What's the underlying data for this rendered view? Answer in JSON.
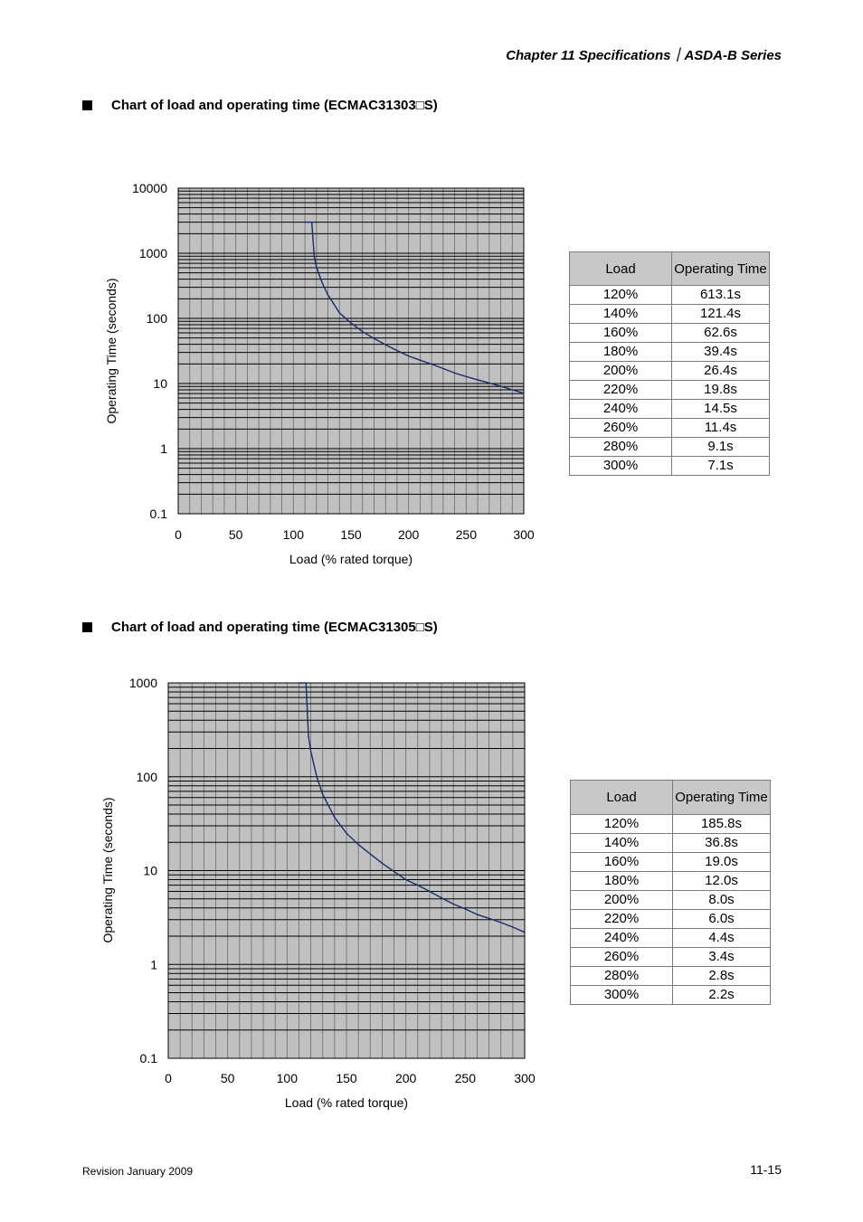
{
  "header": {
    "title": "Chapter 11  Specifications｜ASDA-B Series"
  },
  "sections": [
    {
      "heading": "Chart of load and operating time (ECMAC31303□S)",
      "table": {
        "headers": [
          "Load",
          "Operating Time"
        ],
        "rows": [
          [
            "120%",
            "613.1s"
          ],
          [
            "140%",
            "121.4s"
          ],
          [
            "160%",
            "62.6s"
          ],
          [
            "180%",
            "39.4s"
          ],
          [
            "200%",
            "26.4s"
          ],
          [
            "220%",
            "19.8s"
          ],
          [
            "240%",
            "14.5s"
          ],
          [
            "260%",
            "11.4s"
          ],
          [
            "280%",
            "9.1s"
          ],
          [
            "300%",
            "7.1s"
          ]
        ]
      }
    },
    {
      "heading": "Chart of load and operating time (ECMAC31305□S)",
      "table": {
        "headers": [
          "Load",
          "Operating Time"
        ],
        "rows": [
          [
            "120%",
            "185.8s"
          ],
          [
            "140%",
            "36.8s"
          ],
          [
            "160%",
            "19.0s"
          ],
          [
            "180%",
            "12.0s"
          ],
          [
            "200%",
            "8.0s"
          ],
          [
            "220%",
            "6.0s"
          ],
          [
            "240%",
            "4.4s"
          ],
          [
            "260%",
            "3.4s"
          ],
          [
            "280%",
            "2.8s"
          ],
          [
            "300%",
            "2.2s"
          ]
        ]
      }
    }
  ],
  "chart_data": [
    {
      "type": "line",
      "xlabel": "Load (% rated torque)",
      "ylabel": "Operating Time (seconds)",
      "xlim": [
        0,
        300
      ],
      "ylim": [
        0.1,
        10000
      ],
      "yscale": "log",
      "xticks": [
        "0",
        "50",
        "100",
        "150",
        "200",
        "250",
        "300"
      ],
      "yticks": [
        "0.1",
        "1",
        "10",
        "100",
        "1000",
        "10000"
      ],
      "grid": true,
      "line_color": "#1a2a6c",
      "x": [
        110,
        116,
        118,
        120,
        125,
        130,
        140,
        150,
        160,
        170,
        180,
        190,
        200,
        210,
        220,
        230,
        240,
        250,
        260,
        270,
        280,
        290,
        300
      ],
      "y": [
        3000,
        3000,
        900,
        613.1,
        350,
        230,
        121.4,
        85,
        62.6,
        49,
        39.4,
        32,
        26.4,
        22.8,
        19.8,
        17,
        14.5,
        12.8,
        11.4,
        10.2,
        9.1,
        8,
        7.1
      ]
    },
    {
      "type": "line",
      "xlabel": "Load (% rated torque)",
      "ylabel": "Operating Time (seconds)",
      "xlim": [
        0,
        300
      ],
      "ylim": [
        0.1,
        1000
      ],
      "yscale": "log",
      "xticks": [
        "0",
        "50",
        "100",
        "150",
        "200",
        "250",
        "300"
      ],
      "yticks": [
        "0.1",
        "1",
        "10",
        "100",
        "1000"
      ],
      "grid": true,
      "line_color": "#1a2a6c",
      "x": [
        110,
        116,
        117,
        118,
        120,
        125,
        130,
        140,
        150,
        160,
        170,
        180,
        190,
        200,
        210,
        220,
        230,
        240,
        250,
        260,
        270,
        280,
        290,
        300
      ],
      "y": [
        1000,
        1000,
        500,
        270,
        185.8,
        100,
        65,
        36.8,
        25,
        19.0,
        15,
        12.0,
        9.8,
        8.0,
        7,
        6.0,
        5.1,
        4.4,
        3.9,
        3.4,
        3.1,
        2.8,
        2.5,
        2.2
      ]
    }
  ],
  "footer": {
    "left": "Revision January 2009",
    "right": "11-15"
  }
}
